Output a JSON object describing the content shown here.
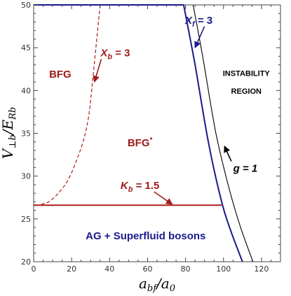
{
  "chart_data": {
    "type": "line",
    "xlabel": "a_bf/a_0",
    "ylabel": "V_⊥b/E_Rb",
    "xlim": [
      0,
      130
    ],
    "ylim": [
      20,
      50
    ],
    "x_ticks": [
      0,
      20,
      40,
      60,
      80,
      100,
      120
    ],
    "y_ticks": [
      20,
      25,
      30,
      35,
      40,
      45,
      50
    ],
    "grid": false,
    "series": [
      {
        "name": "X_f = 3",
        "style": "solid",
        "color": "#1a1a8c",
        "points": [
          [
            79,
            50
          ],
          [
            85,
            43
          ],
          [
            92,
            34
          ],
          [
            99,
            27
          ],
          [
            104,
            23.5
          ],
          [
            110,
            20
          ]
        ]
      },
      {
        "name": "g = 1",
        "style": "solid",
        "color": "#000000",
        "points": [
          [
            84,
            50
          ],
          [
            89,
            44
          ],
          [
            96,
            35
          ],
          [
            103,
            28.5
          ],
          [
            109,
            24
          ],
          [
            115.5,
            20
          ]
        ]
      },
      {
        "name": "X_b = 3",
        "style": "dashed",
        "color": "#b01c1c",
        "points": [
          [
            4,
            26.7
          ],
          [
            8,
            27
          ],
          [
            13,
            28
          ],
          [
            18,
            29.5
          ],
          [
            22,
            31.5
          ],
          [
            26,
            34
          ],
          [
            29,
            37
          ],
          [
            31,
            41
          ],
          [
            33,
            45.5
          ],
          [
            35,
            50
          ]
        ]
      },
      {
        "name": "K_b = 1.5",
        "style": "solid",
        "color": "#b01c1c",
        "points": [
          [
            0,
            26.6
          ],
          [
            99,
            26.6
          ]
        ]
      },
      {
        "name": "",
        "style": "solid",
        "color": "#1a1a8c",
        "points": [
          [
            0,
            50
          ],
          [
            79,
            50
          ]
        ]
      }
    ],
    "regions": [
      {
        "text": "BFG",
        "x": 14,
        "y": 41.5,
        "color": "#a01a1a"
      },
      {
        "text": "BFG*",
        "x": 56,
        "y": 33.5,
        "color": "#a01a1a"
      },
      {
        "text": "AG + Superfluid bosons",
        "x": 59,
        "y": 22.6,
        "color": "#1a1a8c"
      },
      {
        "text": "INSTABILITY",
        "x": 112,
        "y": 41.7,
        "color": "#000000"
      },
      {
        "text": "REGION",
        "x": 112,
        "y": 39.6,
        "color": "#000000"
      }
    ],
    "annotations": [
      {
        "text": "X_f = 3",
        "x": 87,
        "y": 47.8,
        "color": "#1a1a8c",
        "arrow_to": [
          85,
          45
        ]
      },
      {
        "text": "X_b = 3",
        "x": 43,
        "y": 44,
        "color": "#a01a1a",
        "arrow_to": [
          32,
          41
        ]
      },
      {
        "text": "K_b = 1.5",
        "x": 56,
        "y": 28.5,
        "color": "#a01a1a",
        "arrow_to": [
          73,
          26.7
        ]
      },
      {
        "text": "g = 1",
        "x": 111.5,
        "y": 30.5,
        "color": "#000000",
        "arrow_to": [
          100.5,
          33.5
        ]
      }
    ]
  },
  "text": {
    "xlabel_main": "a",
    "xlabel_sub": "bf",
    "xlabel_den": "/a",
    "xlabel_den_sub": "0",
    "ylabel_main": "V",
    "ylabel_sub": "⊥b",
    "ylabel_den": "/E",
    "ylabel_den_sub": "Rb"
  }
}
